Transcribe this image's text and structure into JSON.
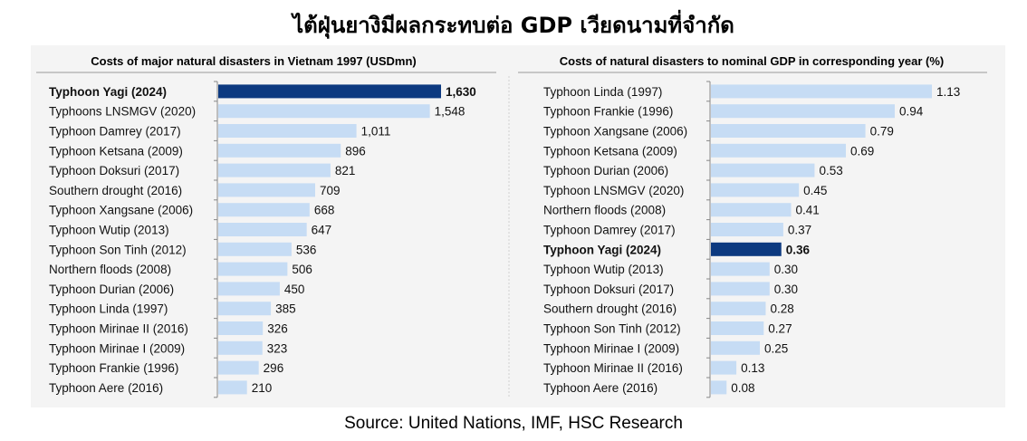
{
  "title": "ไต้ฝุ่นยางิมีผลกระทบต่อ GDP เวียดนามที่จำกัด",
  "source": "Source: United Nations, IMF, HSC Research",
  "colors": {
    "bar": "#c6dcf4",
    "highlight": "#0d3a80",
    "axis": "#888888",
    "panel": "#f4f4f4"
  },
  "chart_data": [
    {
      "type": "bar",
      "orientation": "horizontal",
      "title": "Costs of major natural disasters in Vietnam 1997 (USDmn)",
      "highlight": "Typhoon Yagi (2024)",
      "categories": [
        "Typhoon Yagi (2024)",
        "Typhoons LNSMGV (2020)",
        "Typhoon Damrey (2017)",
        "Typhoon Ketsana (2009)",
        "Typhoon Doksuri (2017)",
        "Southern drought (2016)",
        "Typhoon Xangsane (2006)",
        "Typhoon Wutip (2013)",
        "Typhoon Son Tinh (2012)",
        "Northern floods (2008)",
        "Typhoon Durian (2006)",
        "Typhoon Linda (1997)",
        "Typhoon Mirinae II (2016)",
        "Typhoon Mirinae I (2009)",
        "Typhoon Frankie (1996)",
        "Typhoon Aere (2016)"
      ],
      "values": [
        1630,
        1548,
        1011,
        896,
        821,
        709,
        668,
        647,
        536,
        506,
        450,
        385,
        326,
        323,
        296,
        210
      ],
      "labels": [
        "1,630",
        "1,548",
        "1,011",
        "896",
        "821",
        "709",
        "668",
        "647",
        "536",
        "506",
        "450",
        "385",
        "326",
        "323",
        "296",
        "210"
      ]
    },
    {
      "type": "bar",
      "orientation": "horizontal",
      "title": "Costs of natural disasters to nominal GDP in corresponding year (%)",
      "highlight": "Typhoon Yagi (2024)",
      "categories": [
        "Typhoon Linda (1997)",
        "Typhoon Frankie (1996)",
        "Typhoon Xangsane (2006)",
        "Typhoon Ketsana (2009)",
        "Typhoon Durian (2006)",
        "Typhoon LNSMGV (2020)",
        "Northern floods (2008)",
        "Typhoon Damrey (2017)",
        "Typhoon Yagi (2024)",
        "Typhoon Wutip (2013)",
        "Typhoon Doksuri (2017)",
        "Southern drought (2016)",
        "Typhoon Son Tinh (2012)",
        "Typhoon Mirinae I (2009)",
        "Typhoon Mirinae II (2016)",
        "Typhoon Aere (2016)"
      ],
      "values": [
        1.13,
        0.94,
        0.79,
        0.69,
        0.53,
        0.45,
        0.41,
        0.37,
        0.36,
        0.3,
        0.3,
        0.28,
        0.27,
        0.25,
        0.13,
        0.08
      ],
      "labels": [
        "1.13",
        "0.94",
        "0.79",
        "0.69",
        "0.53",
        "0.45",
        "0.41",
        "0.37",
        "0.36",
        "0.30",
        "0.30",
        "0.28",
        "0.27",
        "0.25",
        "0.13",
        "0.08"
      ]
    }
  ]
}
